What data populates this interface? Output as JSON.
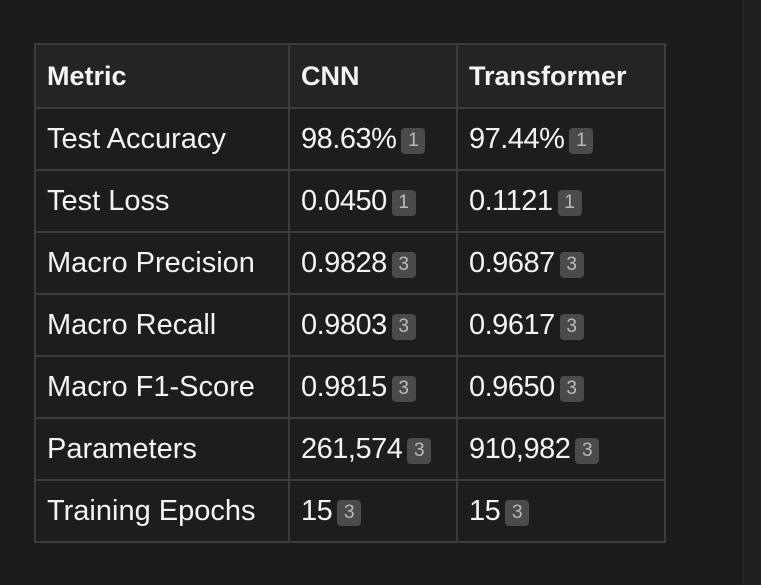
{
  "table": {
    "headers": [
      "Metric",
      "CNN",
      "Transformer"
    ],
    "rows": [
      {
        "metric": "Test Accuracy",
        "cnn": "98.63%",
        "cnn_cite": "1",
        "transformer": "97.44%",
        "transformer_cite": "1"
      },
      {
        "metric": "Test Loss",
        "cnn": "0.0450",
        "cnn_cite": "1",
        "transformer": "0.1121",
        "transformer_cite": "1"
      },
      {
        "metric": "Macro Precision",
        "cnn": "0.9828",
        "cnn_cite": "3",
        "transformer": "0.9687",
        "transformer_cite": "3"
      },
      {
        "metric": "Macro Recall",
        "cnn": "0.9803",
        "cnn_cite": "3",
        "transformer": "0.9617",
        "transformer_cite": "3"
      },
      {
        "metric": "Macro F1-Score",
        "cnn": "0.9815",
        "cnn_cite": "3",
        "transformer": "0.9650",
        "transformer_cite": "3"
      },
      {
        "metric": "Parameters",
        "cnn": "261,574",
        "cnn_cite": "3",
        "transformer": "910,982",
        "transformer_cite": "3"
      },
      {
        "metric": "Training Epochs",
        "cnn": "15",
        "cnn_cite": "3",
        "transformer": "15",
        "transformer_cite": "3"
      }
    ]
  },
  "colors": {
    "background": "#1b1c1c",
    "border": "#3b3d3d",
    "header_background": "#232525",
    "citation_badge": "#4a4c4c",
    "text": "#f3f3f3"
  }
}
